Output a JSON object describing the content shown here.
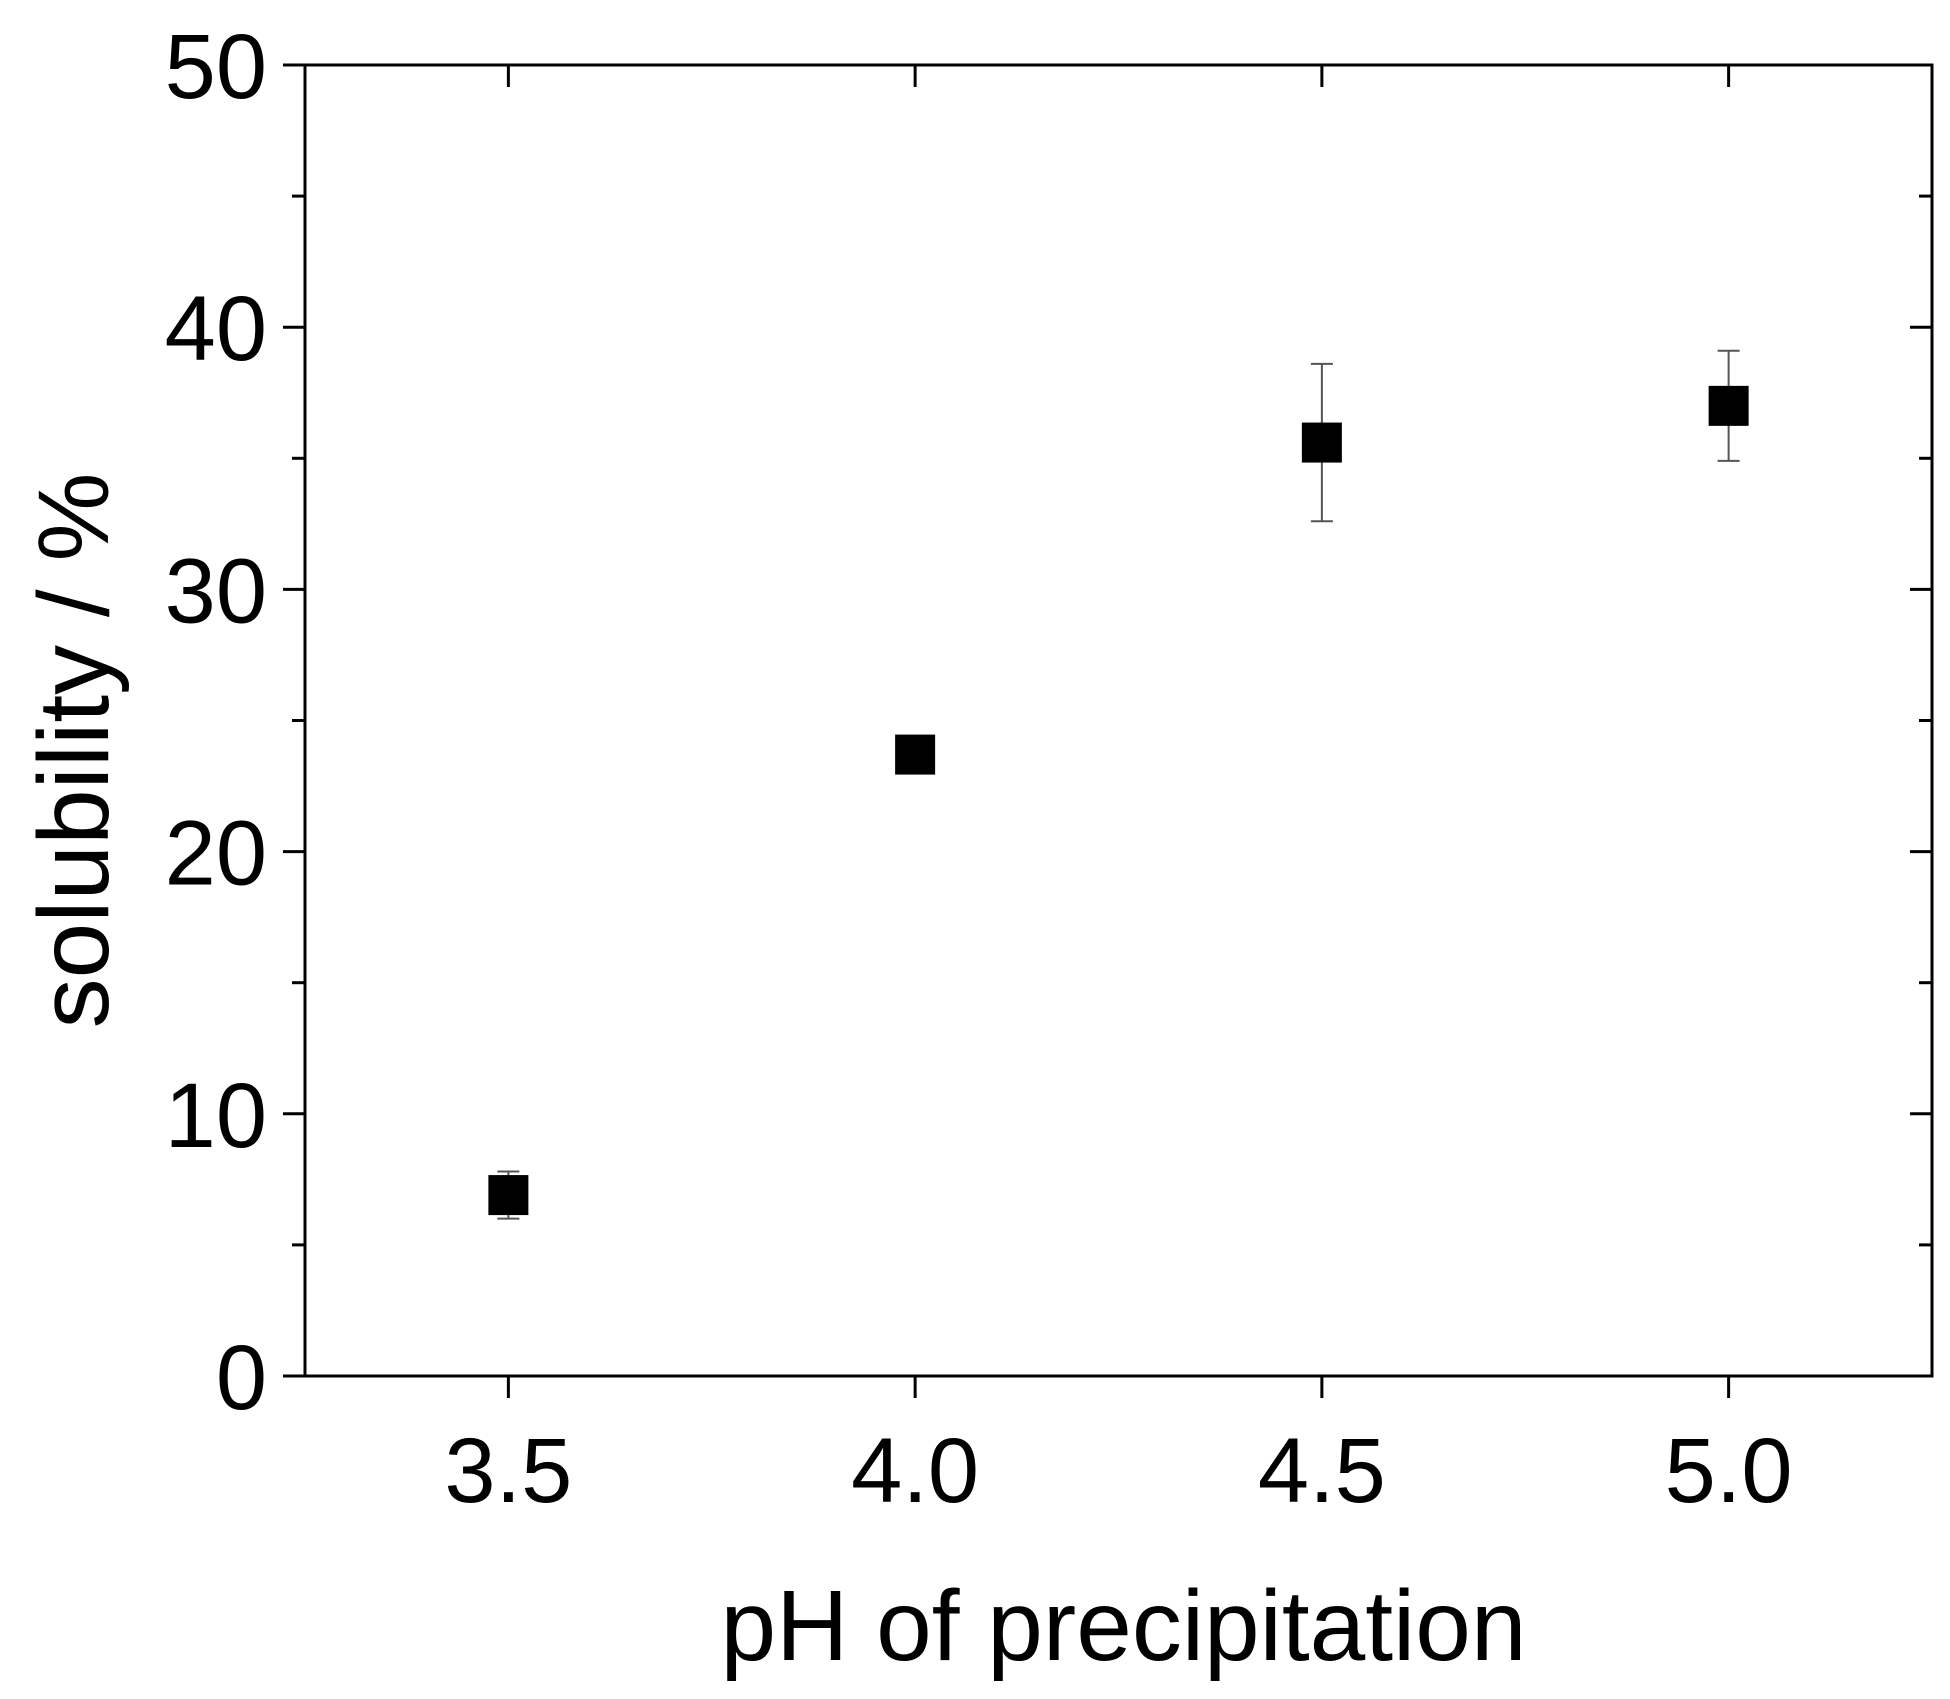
{
  "chart_data": {
    "type": "scatter",
    "title": "",
    "xlabel": "pH of precipitation",
    "ylabel": "solubility / %",
    "xlim": [
      3.25,
      5.25
    ],
    "ylim": [
      0,
      50
    ],
    "x_ticks": [
      3.5,
      4.0,
      4.5,
      5.0
    ],
    "x_tick_labels": [
      "3.5",
      "4.0",
      "4.5",
      "5.0"
    ],
    "y_ticks": [
      0,
      10,
      20,
      30,
      40,
      50
    ],
    "y_tick_labels": [
      "0",
      "10",
      "20",
      "30",
      "40",
      "50"
    ],
    "y_minor_ticks": [
      5,
      15,
      25,
      35,
      45
    ],
    "grid": false,
    "legend": "none",
    "marker": "square",
    "series": [
      {
        "x": [
          3.5,
          4.0,
          4.5,
          5.0
        ],
        "y": [
          6.9,
          23.7,
          35.6,
          37.0
        ],
        "error_low": [
          6.0,
          23.7,
          32.6,
          34.9
        ],
        "error_high": [
          7.8,
          23.7,
          38.6,
          39.1
        ]
      }
    ],
    "colors": {
      "marker": "#000000",
      "axis": "#000000",
      "errorbar": "#555555"
    }
  }
}
